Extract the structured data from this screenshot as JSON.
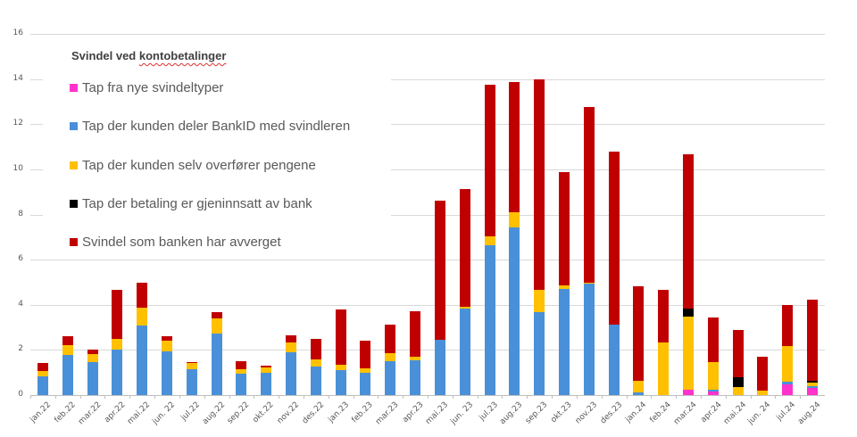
{
  "chart_data": {
    "type": "bar",
    "stacked": true,
    "title": "Svindel ved kontobetalinger",
    "xlabel": "",
    "ylabel": "",
    "ylim": [
      0,
      16
    ],
    "yticks": [
      0,
      2,
      4,
      6,
      8,
      10,
      12,
      14,
      16
    ],
    "grid": true,
    "legend_position": "upper-left (inside plot)",
    "categories": [
      "jan.22",
      "feb.22",
      "mar.22",
      "apr.22",
      "mai.22",
      "jun. 22",
      "jul.22",
      "aug.22",
      "sep.22",
      "okt.22",
      "nov.22",
      "des.22",
      "jan.23",
      "feb.23",
      "mar.23",
      "apr.23",
      "mai.23",
      "jun. 23",
      "jul.23",
      "aug.23",
      "sep.23",
      "okt.23",
      "nov.23",
      "des.23",
      "jan.24",
      "feb.24",
      "mar.24",
      "apr.24",
      "mai.24",
      "jun. 24",
      "jul.24",
      "aug.24"
    ],
    "series": [
      {
        "name": "Tap fra nye svindeltyper",
        "color": "#FF33CC",
        "values": [
          0,
          0,
          0,
          0,
          0,
          0,
          0,
          0,
          0,
          0,
          0,
          0,
          0,
          0,
          0,
          0,
          0,
          0,
          0,
          0,
          0,
          0,
          0,
          0,
          0,
          0,
          0.25,
          0.16,
          0,
          0,
          0.47,
          0.33
        ]
      },
      {
        "name": "Tap der kunden deler BankID med svindleren",
        "color": "#4A90D9",
        "values": [
          0.83,
          1.78,
          1.45,
          2.0,
          3.1,
          1.94,
          1.13,
          2.71,
          0.93,
          1.0,
          1.88,
          1.25,
          1.09,
          0.97,
          1.49,
          1.55,
          2.44,
          3.82,
          6.65,
          7.44,
          3.69,
          4.7,
          4.93,
          3.11,
          0.1,
          0,
          0,
          0.06,
          0,
          0,
          0.11,
          0.06
        ]
      },
      {
        "name": "Tap der kunden selv overfører pengene",
        "color": "#FFC000",
        "values": [
          0.22,
          0.42,
          0.35,
          0.5,
          0.78,
          0.48,
          0.28,
          0.69,
          0.23,
          0.24,
          0.45,
          0.34,
          0.27,
          0.23,
          0.38,
          0.13,
          0,
          0.08,
          0.37,
          0.65,
          0.97,
          0.17,
          0.03,
          0,
          0.53,
          2.33,
          3.24,
          1.23,
          0.37,
          0.18,
          1.58,
          0.17
        ]
      },
      {
        "name": "Tap der betaling er gjeninnsatt av bank",
        "color": "#000000",
        "values": [
          0,
          0,
          0,
          0,
          0,
          0,
          0,
          0,
          0,
          0,
          0,
          0,
          0,
          0,
          0,
          0,
          0,
          0,
          0,
          0,
          0,
          0,
          0,
          0,
          0,
          0,
          0.35,
          0,
          0.43,
          0,
          0,
          0.08
        ]
      },
      {
        "name": "Svindel som banken har avverget",
        "color": "#C00000",
        "values": [
          0.37,
          0.42,
          0.2,
          2.18,
          1.08,
          0.2,
          0.06,
          0.29,
          0.35,
          0.05,
          0.33,
          0.91,
          2.43,
          1.2,
          1.24,
          2.05,
          6.18,
          5.23,
          6.71,
          5.76,
          9.32,
          5.01,
          7.82,
          7.69,
          4.2,
          2.35,
          6.81,
          1.99,
          2.08,
          1.53,
          1.83,
          3.6
        ]
      }
    ],
    "totals": [
      1.42,
      2.62,
      2.0,
      4.68,
      4.96,
      2.62,
      1.47,
      3.69,
      1.51,
      1.29,
      2.66,
      2.5,
      3.79,
      2.4,
      3.11,
      3.73,
      8.62,
      9.13,
      13.73,
      13.85,
      13.98,
      9.88,
      12.78,
      10.8,
      4.83,
      4.68,
      10.65,
      3.44,
      2.88,
      1.71,
      3.99,
      4.24
    ]
  },
  "legend": {
    "title_plain": "Svindel ved ",
    "title_underlined": "kontobetalinger"
  }
}
